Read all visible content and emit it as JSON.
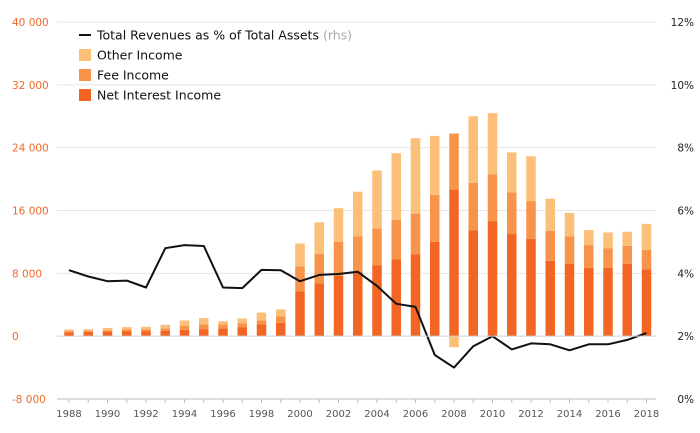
{
  "chart_data": {
    "type": "bar",
    "stacked": true,
    "x": [
      1988,
      1989,
      1990,
      1991,
      1992,
      1993,
      1994,
      1995,
      1996,
      1997,
      1998,
      1999,
      2000,
      2001,
      2002,
      2003,
      2004,
      2005,
      2006,
      2007,
      2008,
      2009,
      2010,
      2011,
      2012,
      2013,
      2014,
      2015,
      2016,
      2017,
      2018
    ],
    "x_tick_labels": [
      "1988",
      "1990",
      "1992",
      "1994",
      "1996",
      "1998",
      "2000",
      "2002",
      "2004",
      "2006",
      "2008",
      "2010",
      "2012",
      "2014",
      "2016",
      "2018"
    ],
    "y_left": {
      "min": -8000,
      "max": 40000,
      "ticks": [
        -8000,
        0,
        8000,
        16000,
        24000,
        32000,
        40000
      ],
      "tick_labels": [
        "-8 000",
        "0",
        "8 000",
        "16 000",
        "24 000",
        "32 000",
        "40 000"
      ]
    },
    "y_right": {
      "min": 0,
      "max": 12,
      "ticks": [
        0,
        2,
        4,
        6,
        8,
        10,
        12
      ],
      "tick_labels": [
        "0%",
        "2%",
        "4%",
        "6%",
        "8%",
        "10%",
        "12%"
      ]
    },
    "grid": "horizontal",
    "legend_position": "top-left",
    "series": [
      {
        "name": "Net Interest Income",
        "kind": "bar",
        "color": "#f26522",
        "values": [
          500,
          550,
          600,
          650,
          650,
          700,
          800,
          900,
          1000,
          1150,
          1500,
          1700,
          5700,
          6700,
          7700,
          8200,
          9000,
          9800,
          10400,
          12000,
          18700,
          13500,
          14600,
          13000,
          12400,
          9600,
          9200,
          8700,
          8700,
          9200,
          8500
        ]
      },
      {
        "name": "Fee Income",
        "kind": "bar",
        "color": "#f7944a",
        "values": [
          150,
          150,
          150,
          200,
          200,
          300,
          500,
          600,
          500,
          500,
          500,
          800,
          3200,
          3800,
          4300,
          4500,
          4700,
          5000,
          5200,
          6000,
          7100,
          6000,
          6000,
          5300,
          4800,
          3800,
          3500,
          2900,
          2500,
          2300,
          2500
        ]
      },
      {
        "name": "Other Income",
        "kind": "bar",
        "color": "#fbbf78",
        "values": [
          200,
          200,
          300,
          300,
          350,
          450,
          700,
          800,
          400,
          600,
          1000,
          900,
          2900,
          4000,
          4300,
          5700,
          7400,
          8500,
          9600,
          7500,
          -1400,
          8500,
          7800,
          5100,
          5700,
          4100,
          3000,
          1900,
          2000,
          1800,
          3300
        ]
      },
      {
        "name": "Total Revenues as % of Total Assets",
        "suffix": "(rhs)",
        "kind": "line",
        "axis": "right",
        "color": "#111111",
        "values": [
          4.1,
          3.9,
          3.75,
          3.77,
          3.55,
          4.8,
          4.9,
          4.87,
          3.55,
          3.53,
          4.11,
          4.1,
          3.75,
          3.95,
          3.98,
          4.05,
          3.6,
          3.03,
          2.93,
          1.4,
          1.0,
          1.68,
          2.0,
          1.58,
          1.77,
          1.74,
          1.55,
          1.74,
          1.74,
          1.88,
          2.1
        ]
      }
    ]
  }
}
